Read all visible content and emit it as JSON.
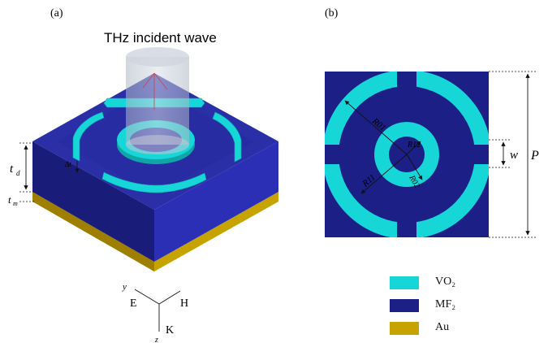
{
  "panel_a": {
    "label": "(a)",
    "incident_label": "THz incident wave",
    "dim_td": "t",
    "dim_td_sub": "d",
    "dim_tm": "t",
    "dim_tm_sub": "m",
    "dim_small": "Δt",
    "axis_y": "y",
    "axis_e": "E",
    "axis_h": "H",
    "axis_k": "K",
    "axis_z": "z"
  },
  "panel_b": {
    "label": "(b)",
    "label_r01": "R01",
    "label_r11": "R11",
    "label_r12": "R12",
    "label_r02": "R02",
    "label_w": "w",
    "label_p": "P"
  },
  "legend": [
    {
      "label": "VO₂",
      "color": "#17d6d8"
    },
    {
      "label": "MF₂",
      "color": "#1c1f86"
    },
    {
      "label": "Au",
      "color": "#c7a300"
    }
  ],
  "colors": {
    "vo2": "#17d6d8",
    "mf2": "#1c1f86",
    "mf2_top": "#2a2fa8",
    "mf2_side_left": "#1a1c7a",
    "mf2_side_right": "#2b2fb6",
    "au": "#c7a300",
    "au_dark": "#9e7f00",
    "cylinder": "#bfc6d2"
  }
}
